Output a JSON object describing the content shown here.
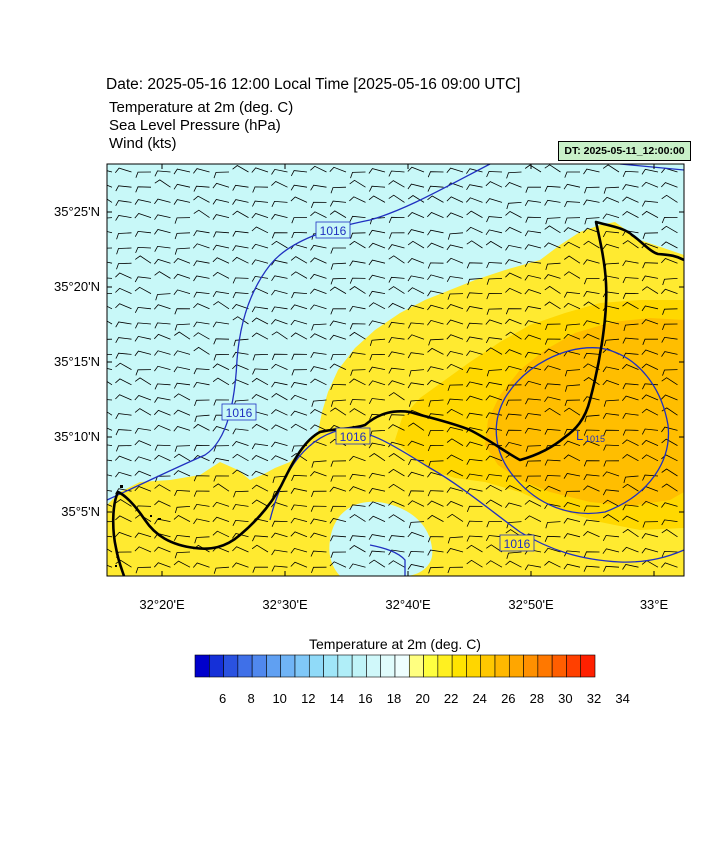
{
  "header": {
    "title": "Date: 2025-05-16  12:00 Local Time [2025-05-16  09:00 UTC]",
    "lines": [
      "Temperature at 2m   (deg. C)",
      "Sea Level Pressure   (hPa)",
      "Wind   (kts)"
    ],
    "model_timestamp": "DT: 2025-05-11_12:00:00"
  },
  "map": {
    "lat_labels": [
      "35°25'N",
      "35°20'N",
      "35°15'N",
      "35°10'N",
      "35°5'N"
    ],
    "lon_labels": [
      "32°20'E",
      "32°30'E",
      "32°40'E",
      "32°50'E",
      "33°E"
    ],
    "isobar_labels": [
      "1016",
      "1016",
      "1016",
      "1016"
    ],
    "low_center_label": "L",
    "low_center_value": "1015",
    "colors": {
      "cool": "#c8f8f8",
      "warm1": "#ffea30",
      "warm2": "#ffd800",
      "warm3": "#ffbe00",
      "isobar": "#2030c0",
      "coast": "#000000"
    }
  },
  "colorbar": {
    "title": "Temperature at 2m  (deg. C)",
    "tick_labels": [
      "6",
      "8",
      "10",
      "12",
      "14",
      "16",
      "18",
      "20",
      "22",
      "24",
      "26",
      "28",
      "30",
      "32",
      "34"
    ],
    "colors": [
      "#0000cc",
      "#1530d8",
      "#2a52e0",
      "#3f70e8",
      "#5088ee",
      "#60a0f2",
      "#70b4f6",
      "#80c8f8",
      "#90daf8",
      "#a0e6f8",
      "#b0eef8",
      "#c0f4f8",
      "#d0f8fa",
      "#e0fcfc",
      "#eefefe",
      "#ffff80",
      "#ffff40",
      "#fff020",
      "#ffe400",
      "#ffd600",
      "#ffc800",
      "#ffb800",
      "#ffa600",
      "#ff9000",
      "#ff7800",
      "#ff5e00",
      "#ff4000",
      "#ff2000"
    ]
  }
}
